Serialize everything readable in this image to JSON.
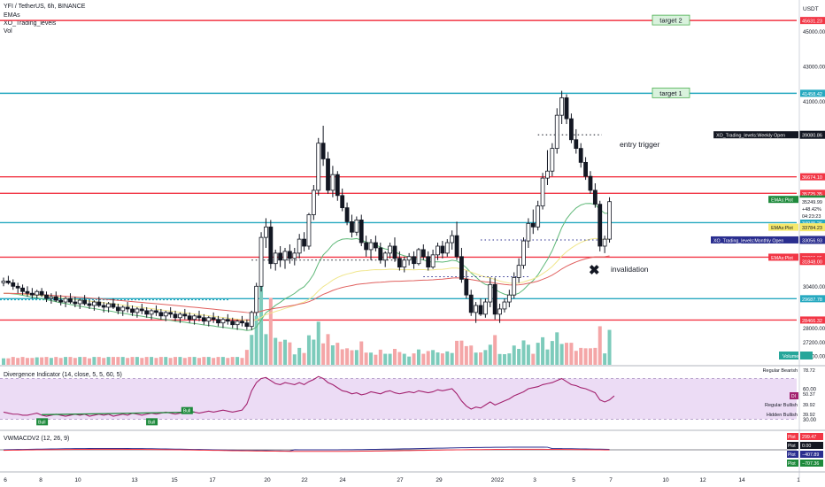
{
  "header": {
    "symbol": "YFI / TetherUS, 6h, BINANCE",
    "indicators": [
      "EMAs",
      "XO_Trading_levels",
      "Vol"
    ]
  },
  "axis": {
    "currency": "USDT"
  },
  "colors": {
    "up": "#ffffff",
    "down": "#131722",
    "red_level": "#f23645",
    "cyan_level": "#26a9c0",
    "vol_up": "#7dcbbb",
    "vol_down": "#f4a6a7",
    "ema_green": "#5fb878",
    "ema_yellow": "#f0e68c",
    "ema_red": "#e0605e",
    "div_line": "#a3226f",
    "div_band": "#ecdcf5"
  },
  "annotations": {
    "target2": "target 2",
    "target1": "target 1",
    "entry": "entry trigger",
    "invalidation": "invalidation",
    "cross": "✖"
  },
  "chart_data": [
    {
      "type": "candlestick",
      "title": "YFI / TetherUS, 6h, BINANCE",
      "y_ticks": [
        45000,
        43000,
        41000,
        30400,
        28000,
        27200,
        26400
      ],
      "y_range": [
        25900,
        46500
      ],
      "x_ticks": [
        "6",
        "8",
        "10",
        "13",
        "15",
        "17",
        "20",
        "22",
        "24",
        "27",
        "29",
        "2022",
        "3",
        "5",
        "7",
        "10",
        "12",
        "14",
        "1"
      ],
      "levels": [
        {
          "price": 45631.23,
          "label": "45631.23",
          "color": "#f23645"
        },
        {
          "price": 41458.42,
          "label": "41458.42",
          "color": "#26a9c0"
        },
        {
          "price": 36674.1,
          "label": "36674.10",
          "color": "#f23645"
        },
        {
          "price": 35725.35,
          "label": "35725.35",
          "color": "#f23645"
        },
        {
          "price": 34045.26,
          "label": "34045.26",
          "color": "#26a9c0"
        },
        {
          "price": 32066.95,
          "label": "32066.95",
          "color": "#f23645"
        },
        {
          "price": 29687.78,
          "label": "29687.78",
          "color": "#26a9c0"
        },
        {
          "price": 28466.32,
          "label": "28466.32",
          "color": "#f23645"
        }
      ],
      "price_labels": [
        {
          "text": "39080.86",
          "price": 39080.86,
          "bg": "#131722",
          "fg": "#ffffff",
          "tag": "XO_Trading_levels:Weekly Open",
          "tagbg": "#131722"
        },
        {
          "text": "35379.08",
          "price": 35379.08,
          "bg": "#1e8a3c",
          "fg": "#ffffff",
          "tag": "EMAs:Plot",
          "tagbg": "#1e8a3c"
        },
        {
          "text": "35249.99",
          "price": 35249.99,
          "bg": "#ffffff",
          "fg": "#131722",
          "tag": "",
          "tagbg": ""
        },
        {
          "text": "+48.42%",
          "price": 34850,
          "bg": "#ffffff",
          "fg": "#131722",
          "tag": "",
          "tagbg": ""
        },
        {
          "text": "04:23:23",
          "price": 34450,
          "bg": "#ffffff",
          "fg": "#131722",
          "tag": "",
          "tagbg": ""
        },
        {
          "text": "33784.23",
          "price": 33784.23,
          "bg": "#f6e96b",
          "fg": "#131722",
          "tag": "EMAs:Plot",
          "tagbg": "#f6e96b"
        },
        {
          "text": "33056.93",
          "price": 33056.93,
          "bg": "#2a2e8f",
          "fg": "#ffffff",
          "tag": "XO_Trading_levels:Monthly Open",
          "tagbg": "#2a2e8f"
        },
        {
          "text": "32066.95",
          "price": 32066.95,
          "bg": "#f23645",
          "fg": "#ffffff",
          "tag": "EMAs:Plot",
          "tagbg": "#f23645"
        },
        {
          "text": "31848.00",
          "price": 31848.0,
          "bg": "#f23645",
          "fg": "#ffffff",
          "tag": "",
          "tagbg": ""
        }
      ],
      "weekly_open": 39080.86,
      "monthly_open": 33056.93,
      "candles": [
        [
          30600,
          30900,
          30400,
          30700
        ],
        [
          30700,
          31000,
          30500,
          30600
        ],
        [
          30600,
          30800,
          30200,
          30400
        ],
        [
          30400,
          30600,
          30000,
          30300
        ],
        [
          30300,
          30500,
          29900,
          30100
        ],
        [
          30100,
          30400,
          29800,
          30000
        ],
        [
          30000,
          30300,
          29700,
          29900
        ],
        [
          29900,
          30200,
          29700,
          30100
        ],
        [
          30100,
          30300,
          29800,
          29900
        ],
        [
          29900,
          30100,
          29500,
          29700
        ],
        [
          29700,
          30000,
          29400,
          29800
        ],
        [
          29800,
          30100,
          29500,
          29600
        ],
        [
          29600,
          29900,
          29300,
          29500
        ],
        [
          29500,
          29800,
          29200,
          29700
        ],
        [
          29700,
          30000,
          29400,
          29500
        ],
        [
          29500,
          29800,
          29200,
          29400
        ],
        [
          29400,
          29700,
          29100,
          29600
        ],
        [
          29600,
          29900,
          29300,
          29400
        ],
        [
          29400,
          29600,
          29100,
          29300
        ],
        [
          29300,
          29600,
          29000,
          29500
        ],
        [
          29500,
          29800,
          29200,
          29300
        ],
        [
          29300,
          29500,
          28900,
          29200
        ],
        [
          29200,
          29500,
          28900,
          29400
        ],
        [
          29400,
          29700,
          29100,
          29200
        ],
        [
          29200,
          29400,
          28800,
          29000
        ],
        [
          29000,
          29300,
          28700,
          29200
        ],
        [
          29200,
          29500,
          28900,
          29100
        ],
        [
          29100,
          29300,
          28700,
          28900
        ],
        [
          28900,
          29200,
          28600,
          29100
        ],
        [
          29100,
          29400,
          28800,
          29000
        ],
        [
          29000,
          29200,
          28600,
          28800
        ],
        [
          28800,
          29100,
          28500,
          29000
        ],
        [
          29000,
          29300,
          28700,
          28900
        ],
        [
          28900,
          29100,
          28500,
          28700
        ],
        [
          28700,
          29000,
          28400,
          28900
        ],
        [
          28900,
          29200,
          28600,
          28800
        ],
        [
          28800,
          29000,
          28400,
          28600
        ],
        [
          28600,
          28900,
          28300,
          28800
        ],
        [
          28800,
          29100,
          28500,
          28700
        ],
        [
          28700,
          28900,
          28300,
          28500
        ],
        [
          28500,
          28800,
          28200,
          28700
        ],
        [
          28700,
          29000,
          28400,
          28600
        ],
        [
          28600,
          28800,
          28200,
          28400
        ],
        [
          28400,
          28700,
          28100,
          28600
        ],
        [
          28600,
          28900,
          28300,
          28500
        ],
        [
          28500,
          28700,
          28100,
          28300
        ],
        [
          28300,
          28600,
          28000,
          28500
        ],
        [
          28500,
          28800,
          28200,
          28400
        ],
        [
          28400,
          28600,
          28000,
          28200
        ],
        [
          28200,
          28500,
          27900,
          28400
        ],
        [
          28400,
          28700,
          28100,
          28300
        ],
        [
          28300,
          28500,
          27900,
          28100
        ],
        [
          28100,
          29000,
          27900,
          28900
        ],
        [
          28900,
          30600,
          28700,
          30400
        ],
        [
          30400,
          33500,
          30100,
          33200
        ],
        [
          33200,
          34300,
          32600,
          33800
        ],
        [
          33800,
          34200,
          31400,
          31700
        ],
        [
          31700,
          32500,
          31300,
          32300
        ],
        [
          32300,
          32700,
          31500,
          31900
        ],
        [
          31900,
          32600,
          31400,
          32400
        ],
        [
          32400,
          32800,
          31700,
          32000
        ],
        [
          32000,
          32600,
          31600,
          32300
        ],
        [
          32300,
          33400,
          32000,
          33100
        ],
        [
          33100,
          33500,
          32400,
          32700
        ],
        [
          32700,
          34600,
          32500,
          34500
        ],
        [
          34500,
          36200,
          34200,
          35900
        ],
        [
          35900,
          38900,
          35600,
          38600
        ],
        [
          38600,
          39600,
          37300,
          37700
        ],
        [
          37700,
          38100,
          35700,
          35900
        ],
        [
          35900,
          37300,
          35500,
          36800
        ],
        [
          36800,
          37000,
          35300,
          35600
        ],
        [
          35600,
          36000,
          34700,
          34900
        ],
        [
          34900,
          35200,
          33900,
          34100
        ],
        [
          34100,
          34500,
          33200,
          33500
        ],
        [
          33500,
          34400,
          33300,
          34200
        ],
        [
          34200,
          34500,
          32700,
          32900
        ],
        [
          32900,
          33300,
          32100,
          32500
        ],
        [
          32500,
          33100,
          31900,
          32900
        ],
        [
          32900,
          33300,
          32400,
          32600
        ],
        [
          32600,
          32900,
          31700,
          31900
        ],
        [
          31900,
          32400,
          31500,
          32300
        ],
        [
          32300,
          32900,
          32000,
          32700
        ],
        [
          32700,
          33200,
          31800,
          32000
        ],
        [
          32000,
          32400,
          31300,
          31500
        ],
        [
          31500,
          32100,
          31200,
          31900
        ],
        [
          31900,
          32300,
          31600,
          32100
        ],
        [
          32100,
          32400,
          31400,
          31700
        ],
        [
          31700,
          32600,
          31600,
          32500
        ],
        [
          32500,
          32800,
          31900,
          32100
        ],
        [
          32100,
          32400,
          31300,
          31500
        ],
        [
          31500,
          32500,
          31400,
          32200
        ],
        [
          32200,
          32900,
          31900,
          32700
        ],
        [
          32700,
          33000,
          32000,
          32300
        ],
        [
          32300,
          33100,
          32100,
          32900
        ],
        [
          32900,
          33600,
          32500,
          33300
        ],
        [
          33300,
          34100,
          31900,
          32100
        ],
        [
          32100,
          32600,
          30600,
          30800
        ],
        [
          30800,
          31300,
          29700,
          29900
        ],
        [
          29900,
          30200,
          28700,
          28900
        ],
        [
          28900,
          29500,
          28300,
          29300
        ],
        [
          29300,
          29700,
          28700,
          28800
        ],
        [
          28800,
          29700,
          28600,
          29500
        ],
        [
          29500,
          30900,
          29200,
          30500
        ],
        [
          30500,
          30900,
          28500,
          28800
        ],
        [
          28800,
          29400,
          28300,
          29100
        ],
        [
          29100,
          29700,
          28900,
          29500
        ],
        [
          29500,
          30200,
          29200,
          29900
        ],
        [
          29900,
          31200,
          29700,
          30900
        ],
        [
          30900,
          32000,
          30600,
          31600
        ],
        [
          31600,
          33200,
          31400,
          33000
        ],
        [
          33000,
          34300,
          32600,
          34000
        ],
        [
          34000,
          34800,
          33400,
          33800
        ],
        [
          33800,
          35300,
          33600,
          35000
        ],
        [
          35000,
          36900,
          34800,
          36600
        ],
        [
          36600,
          38200,
          36200,
          37000
        ],
        [
          37000,
          38600,
          36700,
          38300
        ],
        [
          38300,
          40600,
          38000,
          40200
        ],
        [
          40200,
          41600,
          39700,
          41200
        ],
        [
          41200,
          41400,
          39700,
          40000
        ],
        [
          40000,
          40300,
          38600,
          38800
        ],
        [
          38800,
          39400,
          38000,
          38300
        ],
        [
          38300,
          38600,
          37200,
          37500
        ],
        [
          37500,
          37800,
          36500,
          36700
        ],
        [
          36700,
          37000,
          35700,
          35900
        ],
        [
          35900,
          36300,
          34900,
          35100
        ],
        [
          35100,
          35300,
          32400,
          32700
        ],
        [
          32700,
          33300,
          32300,
          33100
        ],
        [
          33100,
          35500,
          32900,
          35250
        ]
      ],
      "volume_series": "Volume",
      "divergence": {
        "title": "Divergence Indicator (14, close, 5, 5, 60, 5)",
        "band": [
          30,
          70
        ],
        "ticks": [
          60.0,
          30.0
        ],
        "values": [
          37,
          36,
          35,
          35,
          34,
          34,
          35,
          36,
          34,
          33,
          34,
          35,
          34,
          33,
          34,
          35,
          34,
          35,
          33,
          34,
          35,
          34,
          35,
          33,
          34,
          35,
          34,
          36,
          35,
          34,
          35,
          36,
          35,
          36,
          37,
          36,
          35,
          36,
          37,
          38,
          37,
          36,
          37,
          38,
          37,
          38,
          39,
          38,
          37,
          38,
          39,
          45,
          58,
          66,
          70,
          71,
          68,
          65,
          64,
          66,
          65,
          64,
          66,
          64,
          67,
          69,
          72,
          70,
          66,
          64,
          61,
          58,
          57,
          55,
          56,
          54,
          55,
          57,
          56,
          55,
          57,
          58,
          56,
          55,
          56,
          57,
          56,
          58,
          57,
          56,
          57,
          59,
          58,
          59,
          60,
          55,
          48,
          43,
          40,
          42,
          41,
          44,
          47,
          44,
          46,
          48,
          50,
          53,
          55,
          57,
          60,
          61,
          62,
          64,
          65,
          66,
          68,
          70,
          67,
          64,
          63,
          61,
          60,
          58,
          56,
          49,
          47,
          49,
          53
        ],
        "labels": [
          {
            "text": "Regular Bearish",
            "value": "78.72"
          },
          {
            "text": "",
            "value": "50.37"
          },
          {
            "text": "Regular Bullish",
            "value": "39.92"
          },
          {
            "text": "Hidden Bullish",
            "value": "39.92"
          }
        ],
        "bull_markers": [
          "Bull",
          "Bull",
          "Bull"
        ],
        "badge": "DI"
      },
      "vwmacd": {
        "title": "VWMACDV2 (12, 26, 9)",
        "readouts": [
          {
            "tag": "Plot",
            "value": "299.47",
            "bg": "#f23645"
          },
          {
            "tag": "Plot",
            "value": "0.00",
            "bg": "#131722"
          },
          {
            "tag": "Plot",
            "value": "−407.89",
            "bg": "#2a2e8f"
          },
          {
            "tag": "Plot",
            "value": "−707.36",
            "bg": "#1e8a3c"
          }
        ]
      }
    }
  ]
}
